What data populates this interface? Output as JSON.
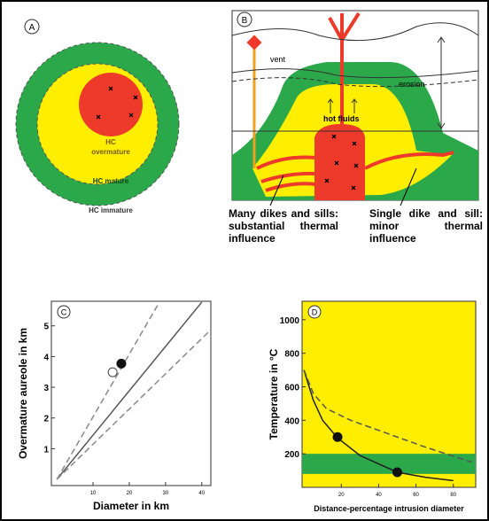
{
  "panel_a": {
    "letter": "A",
    "overmature": [
      "HC",
      "overmature"
    ],
    "mature": "HC mature",
    "immature": "HC immature"
  },
  "panel_b": {
    "letter": "B",
    "vent": "vent",
    "erosion": "erosion",
    "hot_fluids": "hot fluids",
    "caption_left": "Many dikes and sills: substantial thermal influence",
    "caption_right": "Single dike and sill: minor thermal influence"
  },
  "chart_data": [
    {
      "type": "line",
      "letter": "C",
      "x_label": "Diameter in km",
      "y_label": "Overmature aureole in km",
      "xlim": [
        -1.5,
        42.5
      ],
      "ylim": [
        -0.2,
        5.8
      ],
      "xticks": [
        10,
        20,
        30,
        40
      ],
      "yticks": [
        1,
        2,
        3,
        4,
        5
      ],
      "series": [
        {
          "style": "solid",
          "color": "#555555",
          "x": [
            0,
            40
          ],
          "values": [
            0,
            5.77
          ]
        },
        {
          "style": "dashed",
          "color": "#888888",
          "x": [
            0,
            28.3
          ],
          "values": [
            0,
            5.77
          ]
        },
        {
          "style": "dashed",
          "color": "#888888",
          "x": [
            0,
            42.4
          ],
          "values": [
            0,
            4.86
          ]
        },
        {
          "style": "filled-marker",
          "color": "#111111",
          "x": [
            17.8
          ],
          "values": [
            3.77
          ]
        },
        {
          "style": "open-marker",
          "color": "#444444",
          "x": [
            15.4
          ],
          "values": [
            3.49
          ]
        }
      ]
    },
    {
      "type": "line",
      "letter": "D",
      "x_label": "Distance-percentage intrusion diameter",
      "y_label": "Temperature in °C",
      "xlim": [
        -1,
        92
      ],
      "ylim": [
        0,
        1110
      ],
      "xticks": [
        20,
        40,
        60,
        80
      ],
      "yticks": [
        200,
        400,
        600,
        800,
        1000
      ],
      "background": "#ffee00",
      "band": [
        80,
        200
      ],
      "band_color": "#2aa84a",
      "series": [
        {
          "style": "solid",
          "color": "#222222",
          "x": [
            0,
            5,
            10,
            18,
            30,
            50,
            65,
            80
          ],
          "values": [
            700,
            520,
            400,
            295,
            190,
            90,
            60,
            40
          ]
        },
        {
          "style": "dashed",
          "color": "#555555",
          "x": [
            0,
            5,
            12,
            25,
            45,
            65,
            90
          ],
          "values": [
            700,
            560,
            470,
            400,
            320,
            240,
            150
          ]
        },
        {
          "style": "filled-marker",
          "color": "#111111",
          "x": [
            18,
            50
          ],
          "values": [
            300,
            90
          ]
        }
      ]
    }
  ]
}
